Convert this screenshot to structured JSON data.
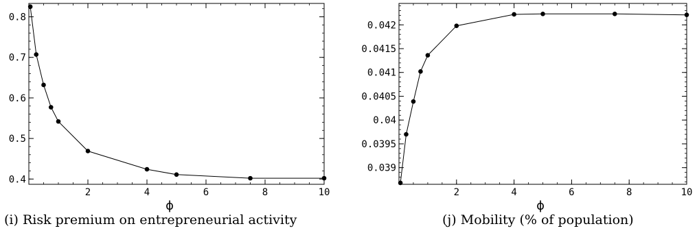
{
  "chart_data": [
    {
      "type": "line",
      "caption": "(i) Risk premium on entrepreneurial activity",
      "xlabel": "ϕ",
      "ylabel": "",
      "xlim": [
        0,
        10
      ],
      "ylim": [
        0.387,
        0.833
      ],
      "xticks": [
        2,
        4,
        6,
        8,
        10
      ],
      "yticks": [
        0.4,
        0.5,
        0.6,
        0.7,
        0.8
      ],
      "ytick_labels": [
        "0.4",
        "0.5",
        "0.6",
        "0.7",
        "0.8"
      ],
      "grid": false,
      "series": [
        {
          "x": [
            0.05,
            0.25,
            0.5,
            0.75,
            1,
            2,
            4,
            5,
            7.5,
            10
          ],
          "y": [
            0.825,
            0.707,
            0.632,
            0.577,
            0.542,
            0.469,
            0.424,
            0.411,
            0.402,
            0.402
          ]
        }
      ]
    },
    {
      "type": "line",
      "caption": "(j) Mobility (% of population)",
      "xlabel": "ϕ",
      "ylabel": "",
      "xlim": [
        0,
        10
      ],
      "ylim": [
        0.03865,
        0.04245
      ],
      "xticks": [
        2,
        4,
        6,
        8,
        10
      ],
      "yticks": [
        0.039,
        0.0395,
        0.04,
        0.0405,
        0.041,
        0.0415,
        0.042
      ],
      "ytick_labels": [
        "0.039",
        "0.0395",
        "0.04",
        "0.0405",
        "0.041",
        "0.0415",
        "0.042"
      ],
      "grid": false,
      "series": [
        {
          "x": [
            0.05,
            0.25,
            0.5,
            0.75,
            1,
            2,
            4,
            5,
            7.5,
            10
          ],
          "y": [
            0.03868,
            0.0397,
            0.04039,
            0.04102,
            0.04136,
            0.04198,
            0.04222,
            0.04223,
            0.04223,
            0.04221
          ]
        }
      ]
    }
  ]
}
